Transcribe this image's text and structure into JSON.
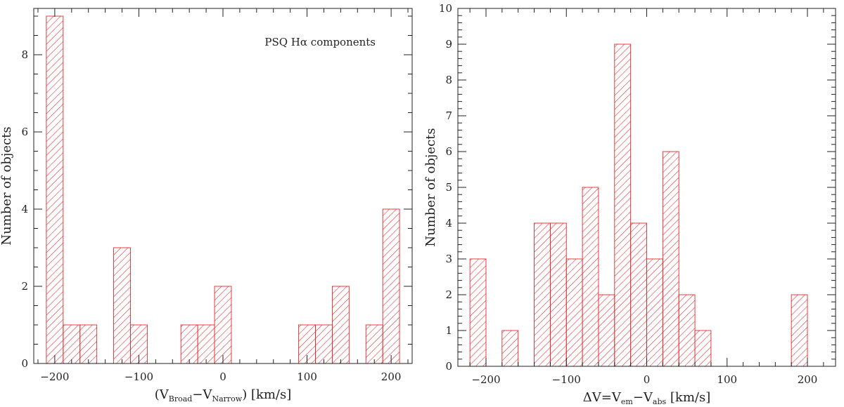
{
  "hatch_color": "#e8262a",
  "chart_data": [
    {
      "type": "bar",
      "title": "",
      "annotation": "PSQ Hα components",
      "ylabel": "Number of objects",
      "xlabel": {
        "main": "(V",
        "sub1": "Broad",
        "mid": "−V",
        "sub2": "Narrow",
        "end": ")  [km/s]"
      },
      "xlim": [
        -225,
        225
      ],
      "ylim": [
        0,
        9.2
      ],
      "xticks": [
        -200,
        -100,
        0,
        100,
        200
      ],
      "xtick_labels": [
        "−200",
        "−100",
        "0",
        "100",
        "200"
      ],
      "yticks": [
        0,
        2,
        4,
        6,
        8
      ],
      "ytick_labels": [
        "0",
        "2",
        "4",
        "6",
        "8"
      ],
      "bin_width": 20,
      "bins": [
        {
          "x0": -210,
          "x1": -190,
          "count": 9
        },
        {
          "x0": -190,
          "x1": -170,
          "count": 1
        },
        {
          "x0": -170,
          "x1": -150,
          "count": 1
        },
        {
          "x0": -130,
          "x1": -110,
          "count": 3
        },
        {
          "x0": -110,
          "x1": -90,
          "count": 1
        },
        {
          "x0": -50,
          "x1": -30,
          "count": 1
        },
        {
          "x0": -30,
          "x1": -10,
          "count": 1
        },
        {
          "x0": -10,
          "x1": 10,
          "count": 2
        },
        {
          "x0": 90,
          "x1": 110,
          "count": 1
        },
        {
          "x0": 110,
          "x1": 130,
          "count": 1
        },
        {
          "x0": 130,
          "x1": 150,
          "count": 2
        },
        {
          "x0": 170,
          "x1": 190,
          "count": 1
        },
        {
          "x0": 190,
          "x1": 210,
          "count": 4
        }
      ]
    },
    {
      "type": "bar",
      "title": "",
      "annotation": "",
      "ylabel": "Number of objects",
      "xlabel": {
        "main": "ΔV=V",
        "sub1": "em",
        "mid": "−V",
        "sub2": "abs",
        "end": "  [km/s]"
      },
      "xlim": [
        -235,
        235
      ],
      "ylim": [
        0,
        10
      ],
      "xticks": [
        -200,
        -100,
        0,
        100,
        200
      ],
      "xtick_labels": [
        "−200",
        "−100",
        "0",
        "100",
        "200"
      ],
      "yticks": [
        0,
        1,
        2,
        3,
        4,
        5,
        6,
        7,
        8,
        9,
        10
      ],
      "ytick_labels": [
        "0",
        "1",
        "2",
        "3",
        "4",
        "5",
        "6",
        "7",
        "8",
        "9",
        "10"
      ],
      "bin_width": 20,
      "bins": [
        {
          "x0": -220,
          "x1": -200,
          "count": 3
        },
        {
          "x0": -180,
          "x1": -160,
          "count": 1
        },
        {
          "x0": -140,
          "x1": -120,
          "count": 4
        },
        {
          "x0": -120,
          "x1": -100,
          "count": 4
        },
        {
          "x0": -100,
          "x1": -80,
          "count": 3
        },
        {
          "x0": -80,
          "x1": -60,
          "count": 5
        },
        {
          "x0": -60,
          "x1": -40,
          "count": 2
        },
        {
          "x0": -40,
          "x1": -20,
          "count": 9
        },
        {
          "x0": -20,
          "x1": 0,
          "count": 4
        },
        {
          "x0": 0,
          "x1": 20,
          "count": 3
        },
        {
          "x0": 20,
          "x1": 40,
          "count": 6
        },
        {
          "x0": 40,
          "x1": 60,
          "count": 2
        },
        {
          "x0": 60,
          "x1": 80,
          "count": 1
        },
        {
          "x0": 180,
          "x1": 200,
          "count": 2
        }
      ]
    }
  ]
}
